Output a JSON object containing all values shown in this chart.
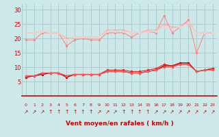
{
  "x": [
    0,
    1,
    2,
    3,
    4,
    5,
    6,
    7,
    8,
    9,
    10,
    11,
    12,
    13,
    14,
    15,
    16,
    17,
    18,
    19,
    20,
    21,
    22,
    23
  ],
  "line1": [
    19.5,
    19.5,
    22,
    22,
    22,
    17.5,
    19.5,
    20,
    19.5,
    19.5,
    22,
    22,
    22,
    20.5,
    22,
    22.5,
    22,
    28,
    22,
    24,
    26.5,
    15,
    22,
    22
  ],
  "line2": [
    22,
    22,
    22.5,
    22,
    22,
    20,
    20.5,
    20.5,
    20.5,
    20.5,
    23,
    23,
    23,
    22,
    22,
    23,
    23,
    25,
    24,
    24,
    26,
    22,
    22,
    22
  ],
  "line3": [
    22,
    22,
    22.5,
    22,
    22,
    19.5,
    20.5,
    20.5,
    20.5,
    20.5,
    22.5,
    22.5,
    22.5,
    22,
    22,
    22.5,
    22.5,
    24,
    23.5,
    24,
    25.5,
    22,
    22,
    22
  ],
  "line4": [
    6.5,
    7,
    7.5,
    8,
    8,
    6.5,
    7.5,
    7.5,
    7.5,
    7.5,
    8.5,
    8.5,
    8.5,
    8,
    8,
    8.5,
    9,
    10.5,
    10.5,
    11.5,
    11.5,
    8.5,
    9,
    9.5
  ],
  "line5": [
    7,
    7,
    8,
    8,
    8,
    7,
    7.5,
    7.5,
    7.5,
    7.5,
    9,
    9,
    9,
    8.5,
    8.5,
    9,
    9.5,
    11,
    10.5,
    11,
    11,
    8.5,
    9,
    9.5
  ],
  "line6": [
    7,
    7,
    8,
    8,
    8,
    7,
    7.5,
    7.5,
    7.5,
    7.5,
    8.5,
    8.5,
    8.5,
    8,
    8,
    8.5,
    9,
    10,
    10,
    11,
    11,
    8.5,
    9,
    9
  ],
  "ylim": [
    0,
    32
  ],
  "yticks": [
    5,
    10,
    15,
    20,
    25,
    30
  ],
  "xlabel": "Vent moyen/en rafales ( km/h )",
  "bg_color": "#cce8e8",
  "grid_color": "#aacccc",
  "line1_color": "#ff8888",
  "line2_color": "#ffaaaa",
  "line3_color": "#ffcccc",
  "line4_color": "#bb0000",
  "line5_color": "#ee2222",
  "line6_color": "#ff5555",
  "arrow_color": "#cc0000",
  "axis_color": "#cc0000",
  "label_color": "#cc0000"
}
